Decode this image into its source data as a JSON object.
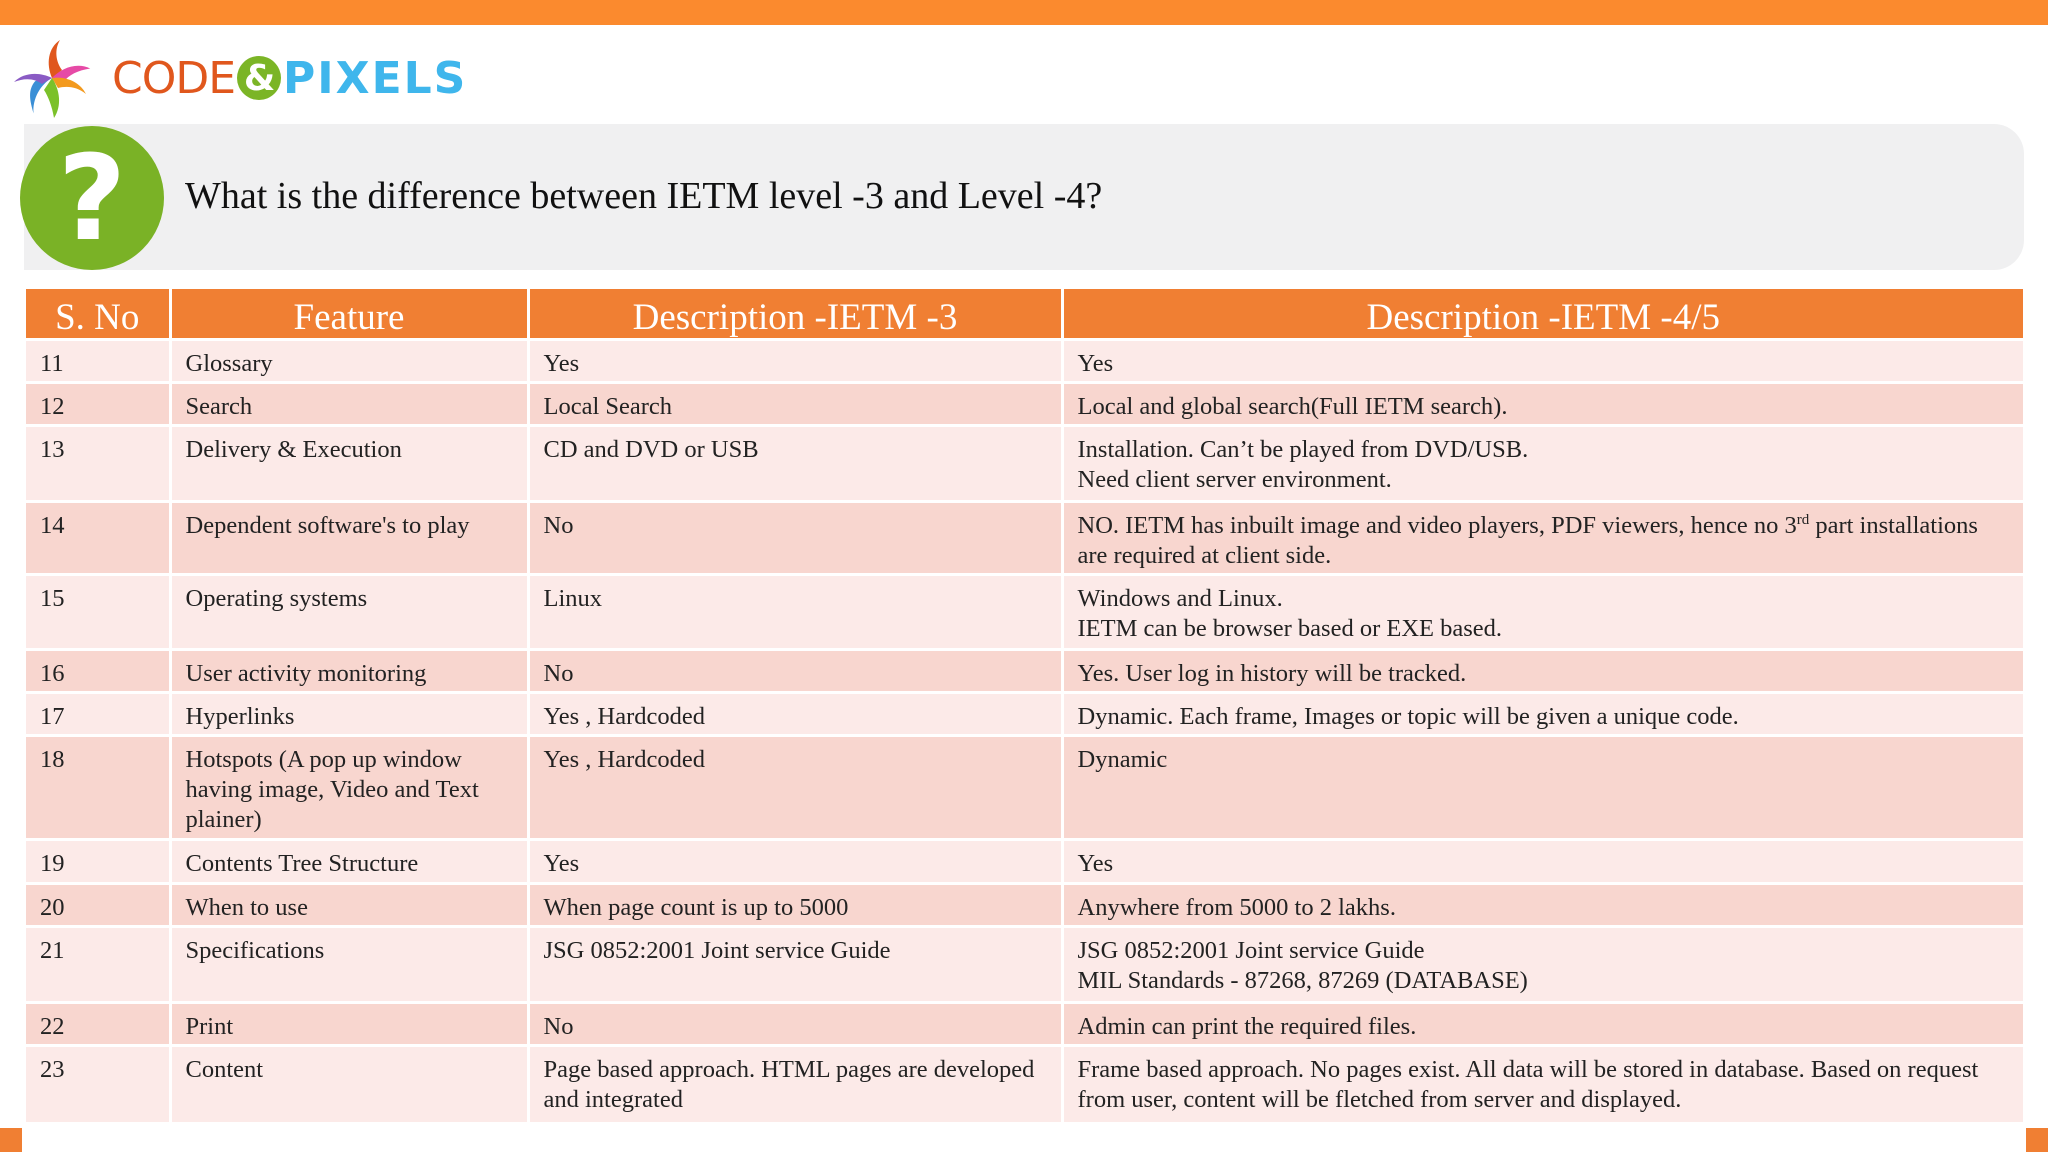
{
  "brand": {
    "logo_text_1": "CODE",
    "logo_amp": "&",
    "logo_text_2": "PIXELS"
  },
  "colors": {
    "top_bar": "#fb8a2e",
    "header_bg": "#f07f33",
    "question_icon": "#7ab226",
    "row_light": "#fceae8",
    "row_dark": "#f8d6cf"
  },
  "question": {
    "icon": "question-mark-icon",
    "text": "What is the difference between IETM level -3 and Level -4?"
  },
  "table": {
    "headers": [
      "S. No",
      "Feature",
      "Description -IETM -3",
      "Description -IETM -4/5"
    ],
    "rows": [
      {
        "sno": "11",
        "feature": "Glossary",
        "ietm3": "Yes",
        "ietm45": "Yes"
      },
      {
        "sno": "12",
        "feature": "Search",
        "ietm3": "Local Search",
        "ietm45": "Local and global search(Full IETM search)."
      },
      {
        "sno": "13",
        "feature": "Delivery & Execution",
        "ietm3": "CD and DVD or USB",
        "ietm45": "Installation. Can’t be played from DVD/USB.\nNeed client server environment."
      },
      {
        "sno": "14",
        "feature": "Dependent software's to play",
        "ietm3": "No",
        "ietm45_pre": "NO. IETM has inbuilt image and video players, PDF viewers, hence no 3",
        "ietm45_sup": "rd",
        "ietm45_post": " part installations are required at client side."
      },
      {
        "sno": "15",
        "feature": "Operating systems",
        "ietm3": "Linux",
        "ietm45": "Windows and Linux.\nIETM can be browser based or EXE based."
      },
      {
        "sno": "16",
        "feature": "User activity monitoring",
        "ietm3": "No",
        "ietm45": "Yes. User log in history will be tracked."
      },
      {
        "sno": "17",
        "feature": "Hyperlinks",
        "ietm3": "Yes , Hardcoded",
        "ietm45": "Dynamic. Each frame, Images or topic will be given a unique code."
      },
      {
        "sno": "18",
        "feature": "Hotspots (A pop up window having image, Video and Text plainer)",
        "ietm3": "Yes , Hardcoded",
        "ietm45": "Dynamic"
      },
      {
        "sno": "19",
        "feature": "Contents Tree Structure",
        "ietm3": "Yes",
        "ietm45": "Yes"
      },
      {
        "sno": "20",
        "feature": "When to use",
        "ietm3": "When page count is up to 5000",
        "ietm45": "Anywhere from 5000 to 2 lakhs."
      },
      {
        "sno": "21",
        "feature": "Specifications",
        "ietm3": "JSG 0852:2001 Joint service Guide",
        "ietm45": "JSG 0852:2001 Joint service Guide\nMIL Standards - 87268, 87269 (DATABASE)"
      },
      {
        "sno": "22",
        "feature": "Print",
        "ietm3": "No",
        "ietm45": "Admin can print the required files."
      },
      {
        "sno": "23",
        "feature": "Content",
        "ietm3": "Page based approach. HTML pages are developed and integrated",
        "ietm45": "Frame based approach. No pages exist. All data will be stored in database. Based on request from user, content will be fletched from server and displayed."
      }
    ]
  }
}
